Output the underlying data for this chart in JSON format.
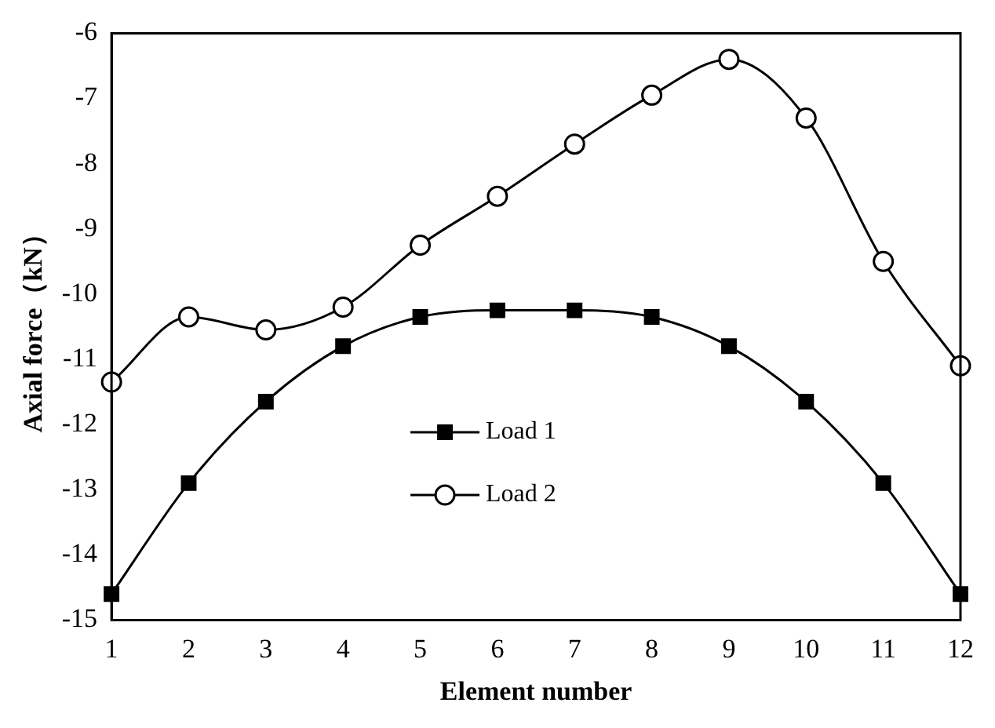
{
  "chart_data": {
    "type": "line",
    "xlabel": "Element number",
    "ylabel": "Axial force（kN）",
    "x": [
      1,
      2,
      3,
      4,
      5,
      6,
      7,
      8,
      9,
      10,
      11,
      12
    ],
    "series": [
      {
        "name": "Load 1",
        "color": "#000000",
        "marker": "square",
        "values": [
          -14.6,
          -12.9,
          -11.65,
          -10.8,
          -10.35,
          -10.25,
          -10.25,
          -10.35,
          -10.8,
          -11.65,
          -12.9,
          -14.6
        ]
      },
      {
        "name": "Load 2",
        "color": "#000000",
        "marker": "circle",
        "values": [
          -11.35,
          -10.35,
          -10.55,
          -10.2,
          -9.25,
          -8.5,
          -7.7,
          -6.95,
          -6.4,
          -7.3,
          -9.5,
          -11.1
        ]
      }
    ],
    "xlim": [
      1,
      12
    ],
    "xticks": [
      1,
      2,
      3,
      4,
      5,
      6,
      7,
      8,
      9,
      10,
      11,
      12
    ],
    "ylim": [
      -15,
      -6
    ],
    "yticks": [
      -15,
      -14,
      -13,
      -12,
      -11,
      -10,
      -9,
      -8,
      -7,
      -6
    ],
    "grid": false,
    "legend": "center"
  }
}
